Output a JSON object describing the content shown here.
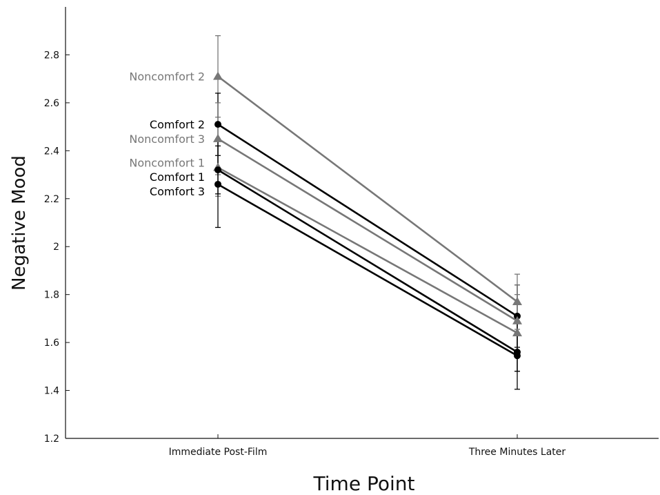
{
  "chart_data": {
    "type": "line",
    "title": "",
    "xlabel": "Time Point",
    "ylabel": "Negative Mood",
    "categories": [
      "Immediate Post-Film",
      "Three Minutes Later"
    ],
    "ylim": [
      1.2,
      3.0
    ],
    "yticks": [
      1.2,
      1.4,
      1.6,
      1.8,
      2,
      2.2,
      2.4,
      2.6,
      2.8
    ],
    "ytick_labels": [
      "1.2",
      "1.4",
      "1.6",
      "1.8",
      "2",
      "2.2",
      "2.4",
      "2.6",
      "2.8"
    ],
    "grid": false,
    "legend": "direct labels at left end of each line",
    "series": [
      {
        "name": "Noncomfort 2",
        "values": [
          2.71,
          1.77
        ],
        "color": "#777777",
        "marker": "triangle",
        "errors": [
          0.17,
          0.115
        ]
      },
      {
        "name": "Comfort 2",
        "values": [
          2.51,
          1.71
        ],
        "color": "#000000",
        "marker": "circle",
        "errors": [
          0.13,
          0.13
        ]
      },
      {
        "name": "Noncomfort 3",
        "values": [
          2.45,
          1.69
        ],
        "color": "#777777",
        "marker": "triangle",
        "errors": [
          0.15,
          0.15
        ]
      },
      {
        "name": "Noncomfort 1",
        "values": [
          2.33,
          1.64
        ],
        "color": "#777777",
        "marker": "triangle",
        "errors": [
          0.12,
          0.16
        ]
      },
      {
        "name": "Comfort 1",
        "values": [
          2.32,
          1.56
        ],
        "color": "#000000",
        "marker": "circle",
        "errors": [
          0.1,
          0.08
        ]
      },
      {
        "name": "Comfort 3",
        "values": [
          2.26,
          1.545
        ],
        "color": "#000000",
        "marker": "circle",
        "errors": [
          0.18,
          0.14
        ]
      }
    ]
  }
}
